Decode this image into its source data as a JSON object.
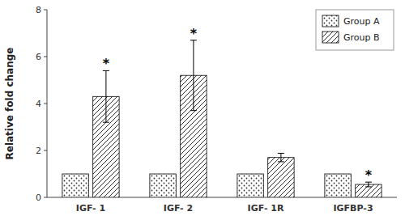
{
  "chart_data": {
    "type": "bar",
    "ylabel": "Relative fold change",
    "categories": [
      "IGF- 1",
      "IGF- 2",
      "IGF- 1R",
      "IGFBP-3"
    ],
    "series": [
      {
        "name": "Group A",
        "color": "#ffffff",
        "values": [
          1.0,
          1.0,
          1.0,
          1.0
        ]
      },
      {
        "name": "Group B",
        "color": "#ffffff",
        "values": [
          4.3,
          5.2,
          1.7,
          0.55
        ],
        "errors": [
          1.1,
          1.5,
          0.18,
          0.1
        ],
        "annotations": [
          "*",
          "*",
          null,
          "*"
        ]
      }
    ],
    "ylim": [
      0,
      8
    ],
    "yticks": [
      0,
      2,
      4,
      6,
      8
    ],
    "grid": false,
    "legend": "upper right"
  }
}
